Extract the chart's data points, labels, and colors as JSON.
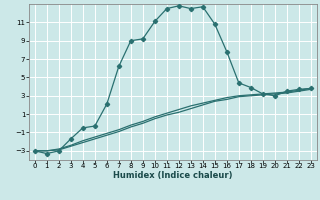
{
  "xlabel": "Humidex (Indice chaleur)",
  "xlim": [
    -0.5,
    23.5
  ],
  "ylim": [
    -4.0,
    13.0
  ],
  "xticks": [
    0,
    1,
    2,
    3,
    4,
    5,
    6,
    7,
    8,
    9,
    10,
    11,
    12,
    13,
    14,
    15,
    16,
    17,
    18,
    19,
    20,
    21,
    22,
    23
  ],
  "yticks": [
    -3,
    -1,
    1,
    3,
    5,
    7,
    9,
    11
  ],
  "bg_color": "#cce8e8",
  "grid_color": "#ffffff",
  "line_color": "#2a7070",
  "curve1_x": [
    0,
    1,
    2,
    3,
    4,
    5,
    6,
    7,
    8,
    9,
    10,
    11,
    12,
    13,
    14,
    15,
    16,
    17,
    18,
    19,
    20,
    21,
    22,
    23
  ],
  "curve1_y": [
    -3.0,
    -3.3,
    -3.0,
    -1.7,
    -0.5,
    -0.3,
    2.1,
    6.2,
    9.0,
    9.2,
    11.1,
    12.5,
    12.8,
    12.5,
    12.7,
    10.8,
    7.8,
    4.4,
    3.9,
    3.2,
    3.0,
    3.5,
    3.7,
    3.8
  ],
  "curve2_x": [
    0,
    1,
    2,
    3,
    4,
    5,
    6,
    7,
    8,
    9,
    10,
    11,
    12,
    13,
    14,
    15,
    16,
    17,
    18,
    19,
    20,
    21,
    22,
    23
  ],
  "curve2_y": [
    -3.0,
    -3.0,
    -2.9,
    -2.5,
    -2.1,
    -1.7,
    -1.3,
    -0.9,
    -0.4,
    0.0,
    0.5,
    0.9,
    1.2,
    1.6,
    2.0,
    2.4,
    2.6,
    2.9,
    3.0,
    3.1,
    3.2,
    3.3,
    3.5,
    3.7
  ],
  "curve3_x": [
    0,
    1,
    2,
    3,
    4,
    5,
    6,
    7,
    8,
    9,
    10,
    11,
    12,
    13,
    14,
    15,
    16,
    17,
    18,
    19,
    20,
    21,
    22,
    23
  ],
  "curve3_y": [
    -3.0,
    -3.0,
    -2.8,
    -2.4,
    -1.9,
    -1.5,
    -1.1,
    -0.7,
    -0.2,
    0.2,
    0.7,
    1.1,
    1.5,
    1.9,
    2.2,
    2.5,
    2.8,
    3.0,
    3.1,
    3.2,
    3.3,
    3.4,
    3.6,
    3.8
  ],
  "marker": "D",
  "markersize": 2.2,
  "linewidth": 0.9,
  "tick_fontsize": 5.0,
  "xlabel_fontsize": 6.0
}
